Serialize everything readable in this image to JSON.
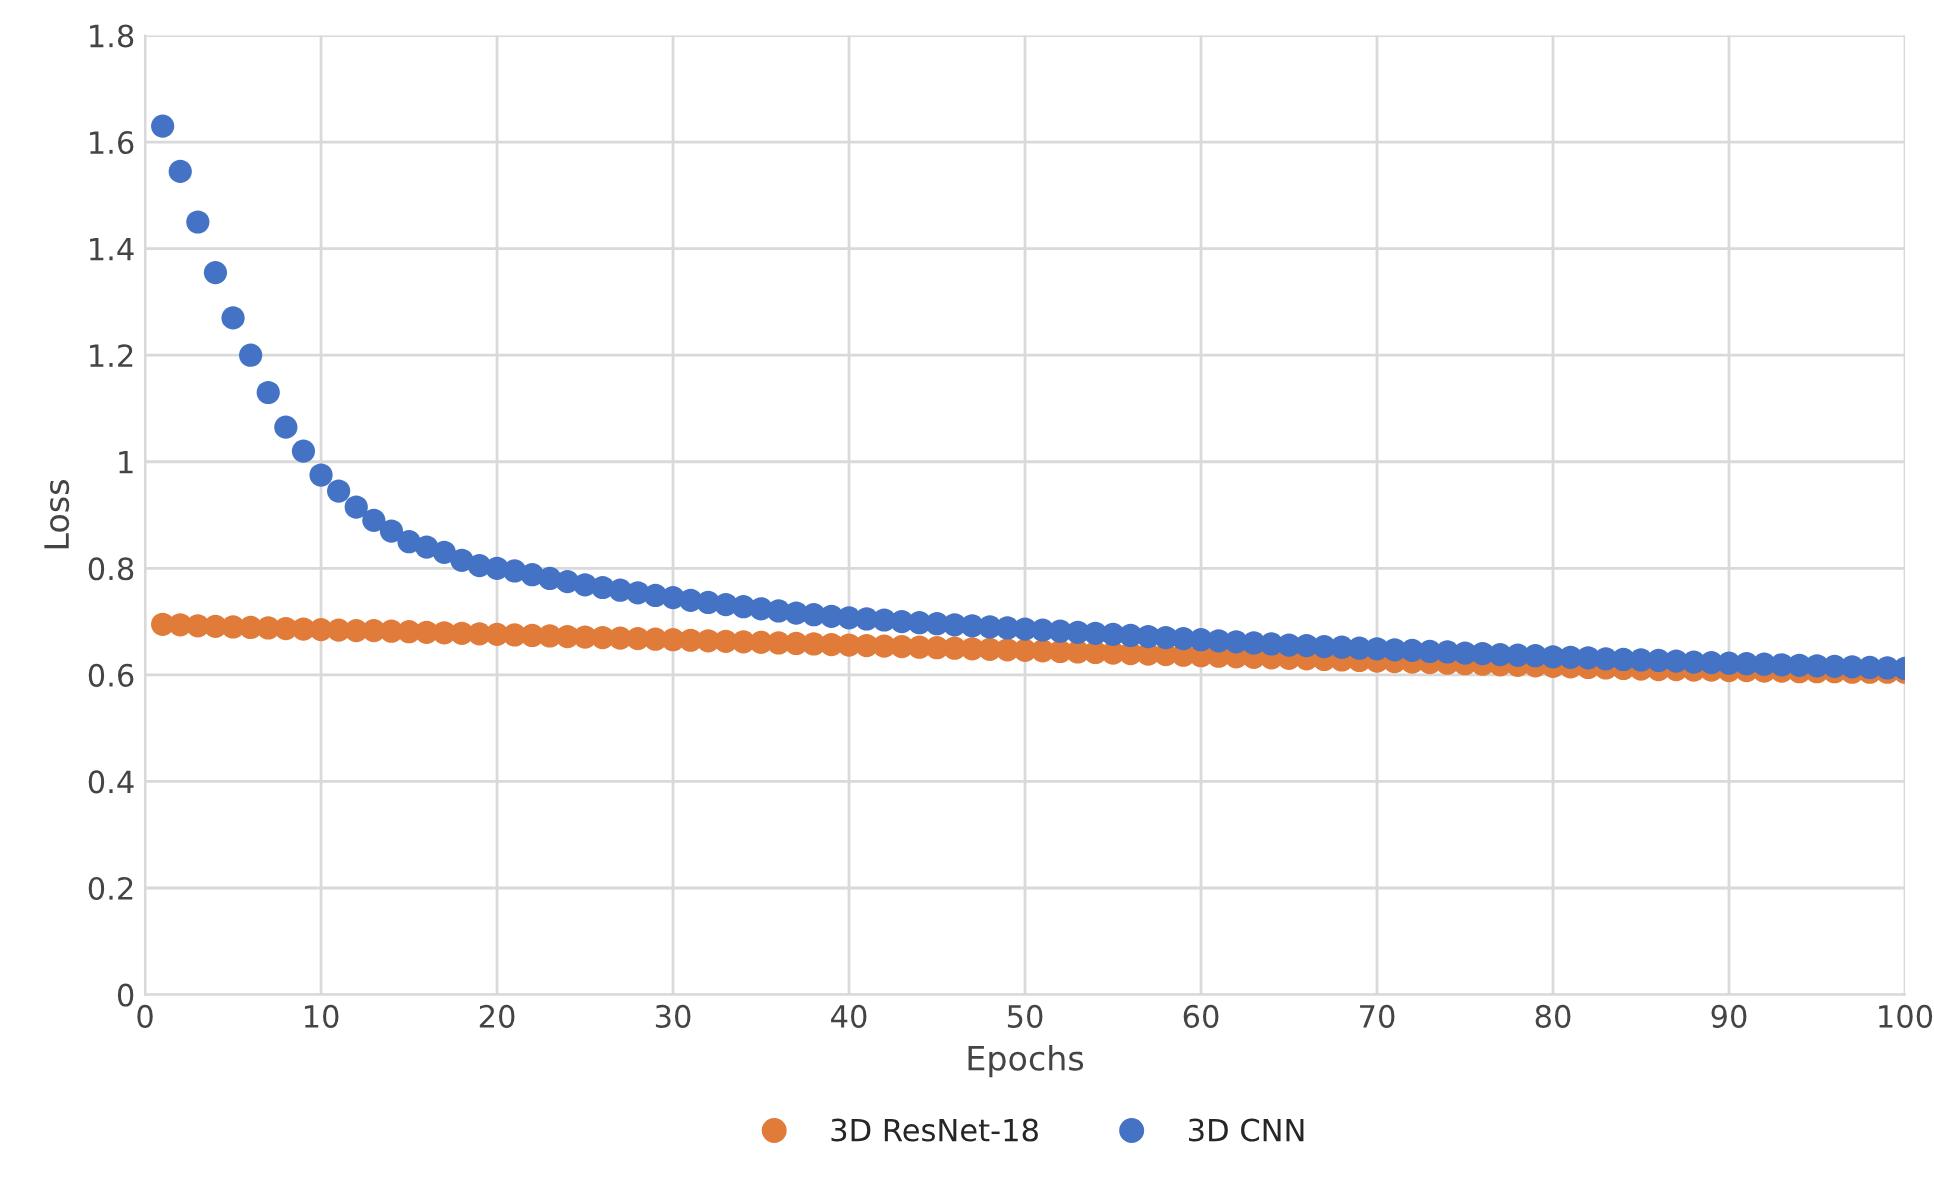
{
  "chart_data": {
    "type": "scatter",
    "xlabel": "Epochs",
    "ylabel": "Loss",
    "x": [
      1,
      2,
      3,
      4,
      5,
      6,
      7,
      8,
      9,
      10,
      11,
      12,
      13,
      14,
      15,
      16,
      17,
      18,
      19,
      20,
      21,
      22,
      23,
      24,
      25,
      26,
      27,
      28,
      29,
      30,
      31,
      32,
      33,
      34,
      35,
      36,
      37,
      38,
      39,
      40,
      41,
      42,
      43,
      44,
      45,
      46,
      47,
      48,
      49,
      50,
      51,
      52,
      53,
      54,
      55,
      56,
      57,
      58,
      59,
      60,
      61,
      62,
      63,
      64,
      65,
      66,
      67,
      68,
      69,
      70,
      71,
      72,
      73,
      74,
      75,
      76,
      77,
      78,
      79,
      80,
      81,
      82,
      83,
      84,
      85,
      86,
      87,
      88,
      89,
      90,
      91,
      92,
      93,
      94,
      95,
      96,
      97,
      98,
      99,
      100
    ],
    "series": [
      {
        "name": "3D ResNet-18",
        "color": "#e07b39",
        "values": [
          0.695,
          0.694,
          0.692,
          0.691,
          0.69,
          0.689,
          0.688,
          0.687,
          0.686,
          0.685,
          0.684,
          0.683,
          0.683,
          0.682,
          0.681,
          0.68,
          0.679,
          0.678,
          0.677,
          0.676,
          0.675,
          0.674,
          0.673,
          0.672,
          0.671,
          0.67,
          0.669,
          0.668,
          0.667,
          0.666,
          0.665,
          0.664,
          0.663,
          0.662,
          0.661,
          0.66,
          0.659,
          0.658,
          0.657,
          0.656,
          0.655,
          0.654,
          0.653,
          0.652,
          0.651,
          0.65,
          0.649,
          0.648,
          0.647,
          0.646,
          0.645,
          0.644,
          0.643,
          0.642,
          0.641,
          0.64,
          0.639,
          0.638,
          0.637,
          0.636,
          0.635,
          0.634,
          0.633,
          0.632,
          0.631,
          0.63,
          0.629,
          0.628,
          0.627,
          0.626,
          0.625,
          0.624,
          0.623,
          0.622,
          0.621,
          0.62,
          0.619,
          0.618,
          0.617,
          0.616,
          0.615,
          0.614,
          0.613,
          0.612,
          0.611,
          0.61,
          0.61,
          0.609,
          0.609,
          0.608,
          0.608,
          0.607,
          0.607,
          0.606,
          0.606,
          0.606,
          0.605,
          0.605,
          0.605,
          0.605
        ]
      },
      {
        "name": "3D CNN",
        "color": "#4472c4",
        "values": [
          1.63,
          1.545,
          1.45,
          1.355,
          1.27,
          1.2,
          1.13,
          1.065,
          1.02,
          0.975,
          0.945,
          0.915,
          0.89,
          0.87,
          0.85,
          0.84,
          0.83,
          0.815,
          0.805,
          0.8,
          0.795,
          0.788,
          0.781,
          0.775,
          0.769,
          0.764,
          0.759,
          0.754,
          0.749,
          0.745,
          0.74,
          0.736,
          0.732,
          0.728,
          0.724,
          0.72,
          0.716,
          0.713,
          0.71,
          0.707,
          0.705,
          0.703,
          0.7,
          0.698,
          0.696,
          0.694,
          0.692,
          0.69,
          0.688,
          0.686,
          0.684,
          0.682,
          0.68,
          0.678,
          0.676,
          0.674,
          0.672,
          0.67,
          0.668,
          0.666,
          0.664,
          0.662,
          0.66,
          0.658,
          0.656,
          0.655,
          0.653,
          0.652,
          0.65,
          0.649,
          0.647,
          0.646,
          0.644,
          0.643,
          0.641,
          0.64,
          0.638,
          0.637,
          0.636,
          0.634,
          0.633,
          0.632,
          0.63,
          0.629,
          0.628,
          0.627,
          0.626,
          0.624,
          0.623,
          0.622,
          0.621,
          0.62,
          0.619,
          0.618,
          0.617,
          0.616,
          0.615,
          0.614,
          0.613,
          0.612
        ]
      }
    ],
    "xlim": [
      0,
      100
    ],
    "xticks": [
      0,
      10,
      20,
      30,
      40,
      50,
      60,
      70,
      80,
      90,
      100
    ],
    "ylim": [
      0,
      1.8
    ],
    "yticks": [
      0,
      0.2,
      0.4,
      0.6,
      0.8,
      1,
      1.2,
      1.4,
      1.6,
      1.8
    ],
    "grid": true,
    "legend": "bottom",
    "marker": "circle"
  }
}
